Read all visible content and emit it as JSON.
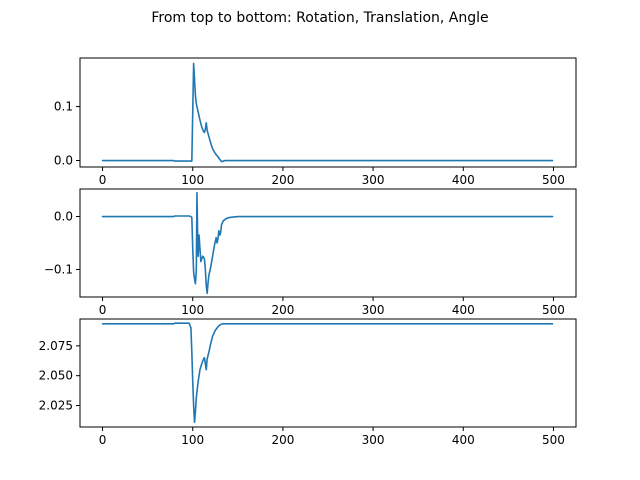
{
  "figure": {
    "title": "From top to bottom: Rotation, Translation, Angle"
  },
  "colors": {
    "series": "#1f77b4",
    "axes": "#000000"
  },
  "chart_data": [
    {
      "type": "line",
      "title": "",
      "xlabel": "",
      "ylabel": "",
      "xlim": [
        -25,
        525
      ],
      "ylim": [
        -0.012,
        0.19
      ],
      "xticks": [
        0,
        100,
        200,
        300,
        400,
        500
      ],
      "xtick_labels": [
        "0",
        "100",
        "200",
        "300",
        "400",
        "500"
      ],
      "yticks": [
        0.0,
        0.1
      ],
      "ytick_labels": [
        "0.0",
        "0.1"
      ],
      "grid": false,
      "legend": "none",
      "series": [
        {
          "x": [
            0,
            79,
            80,
            96,
            99,
            100,
            101,
            102,
            103,
            104,
            106,
            108,
            110,
            112,
            113,
            114,
            115,
            116,
            118,
            120,
            122,
            125,
            128,
            130,
            132,
            134,
            136,
            140,
            150,
            200,
            300,
            400,
            499
          ],
          "values": [
            0.0,
            0.0,
            -0.001,
            -0.001,
            -0.001,
            0.09,
            0.18,
            0.15,
            0.12,
            0.105,
            0.09,
            0.075,
            0.062,
            0.054,
            0.052,
            0.058,
            0.07,
            0.056,
            0.044,
            0.032,
            0.022,
            0.013,
            0.007,
            0.002,
            -0.002,
            -0.001,
            0.0,
            0.0,
            0.0,
            0.0,
            0.0,
            0.0,
            0.0
          ]
        }
      ]
    },
    {
      "type": "line",
      "title": "",
      "xlabel": "",
      "ylabel": "",
      "xlim": [
        -25,
        525
      ],
      "ylim": [
        -0.152,
        0.052
      ],
      "xticks": [
        0,
        100,
        200,
        300,
        400,
        500
      ],
      "xtick_labels": [
        "0",
        "100",
        "200",
        "300",
        "400",
        "500"
      ],
      "yticks": [
        0.0,
        -0.1
      ],
      "ytick_labels": [
        "0.0",
        "−0.1"
      ],
      "grid": false,
      "legend": "none",
      "series": [
        {
          "x": [
            0,
            79,
            80,
            96,
            98,
            99,
            100,
            101,
            102,
            103,
            104,
            104.7,
            105.3,
            106,
            107,
            108,
            109,
            110,
            111,
            112,
            113,
            114,
            115,
            116,
            117,
            118,
            120,
            122,
            124,
            126,
            127,
            128,
            129,
            130,
            131,
            132,
            134,
            137,
            140,
            145,
            150,
            200,
            300,
            400,
            499
          ],
          "values": [
            0.0,
            0.0,
            0.001,
            0.001,
            0.0,
            -0.002,
            -0.06,
            -0.105,
            -0.118,
            -0.127,
            -0.1,
            0.045,
            -0.02,
            -0.075,
            -0.035,
            -0.06,
            -0.085,
            -0.08,
            -0.075,
            -0.077,
            -0.08,
            -0.1,
            -0.13,
            -0.145,
            -0.125,
            -0.11,
            -0.095,
            -0.075,
            -0.055,
            -0.04,
            -0.05,
            -0.042,
            -0.027,
            -0.035,
            -0.03,
            -0.015,
            -0.008,
            -0.004,
            -0.002,
            -0.001,
            0.0,
            0.0,
            0.0,
            0.0,
            0.0
          ]
        }
      ]
    },
    {
      "type": "line",
      "title": "",
      "xlabel": "",
      "ylabel": "",
      "xlim": [
        -25,
        525
      ],
      "ylim": [
        2.007,
        2.0975
      ],
      "xticks": [
        0,
        100,
        200,
        300,
        400,
        500
      ],
      "xtick_labels": [
        "0",
        "100",
        "200",
        "300",
        "400",
        "500"
      ],
      "yticks": [
        2.025,
        2.05,
        2.075
      ],
      "ytick_labels": [
        "2.025",
        "2.050",
        "2.075"
      ],
      "grid": false,
      "legend": "none",
      "series": [
        {
          "x": [
            0,
            79,
            80,
            96,
            98,
            99,
            100,
            101,
            102,
            103,
            104,
            106,
            108,
            110,
            112,
            113,
            114,
            115,
            116,
            118,
            120,
            122,
            125,
            128,
            131,
            134,
            137,
            140,
            150,
            200,
            300,
            400,
            499
          ],
          "values": [
            2.0935,
            2.0935,
            2.094,
            2.094,
            2.09,
            2.07,
            2.045,
            2.025,
            2.011,
            2.02,
            2.032,
            2.045,
            2.055,
            2.06,
            2.064,
            2.065,
            2.06,
            2.055,
            2.064,
            2.07,
            2.077,
            2.083,
            2.088,
            2.091,
            2.093,
            2.0935,
            2.0935,
            2.0935,
            2.0935,
            2.0935,
            2.0935,
            2.0935,
            2.0935
          ]
        }
      ]
    }
  ]
}
